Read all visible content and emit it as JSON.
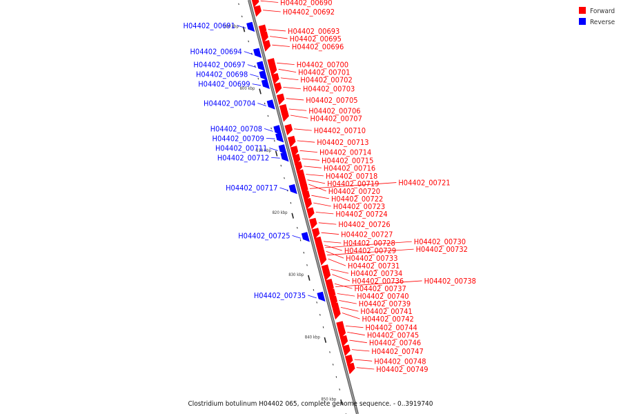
{
  "colors": {
    "forward": "#ff0000",
    "reverse": "#0000ff",
    "backbone": "#9e9e9e",
    "backbone_edge": "#555555",
    "tick": "#222222"
  },
  "legend": {
    "forward": "Forward",
    "reverse": "Reverse"
  },
  "caption": "Clostridium botulinum H04402 065, complete genome sequence. - 0..3919740",
  "backbone": {
    "start_kbp": 785.8,
    "end_kbp": 852.4
  },
  "tick_labels": [
    {
      "kbp": 790,
      "text": "790 kbp"
    },
    {
      "kbp": 800,
      "text": "800 kbp"
    },
    {
      "kbp": 810,
      "text": "810 kbp"
    },
    {
      "kbp": 820,
      "text": "820 kbp"
    },
    {
      "kbp": 830,
      "text": "830 kbp"
    },
    {
      "kbp": 840,
      "text": "840 kbp"
    },
    {
      "kbp": 850,
      "text": "850 kbp"
    }
  ],
  "genes": [
    {
      "name": "H04402_00690",
      "strand": "forward",
      "kbp": 786.3
    },
    {
      "name": "H04402_00692",
      "strand": "forward",
      "kbp": 787.8
    },
    {
      "name": "H04402_00691",
      "strand": "reverse",
      "kbp": 790.0
    },
    {
      "name": "H04402_00693",
      "strand": "forward",
      "kbp": 790.9
    },
    {
      "name": "H04402_00695",
      "strand": "forward",
      "kbp": 792.0
    },
    {
      "name": "H04402_00696",
      "strand": "forward",
      "kbp": 793.4
    },
    {
      "name": "H04402_00694",
      "strand": "reverse",
      "kbp": 794.2
    },
    {
      "name": "H04402_00700",
      "strand": "forward",
      "kbp": 796.3
    },
    {
      "name": "H04402_00697",
      "strand": "reverse",
      "kbp": 796.3
    },
    {
      "name": "H04402_00701",
      "strand": "forward",
      "kbp": 797.3
    },
    {
      "name": "H04402_00698",
      "strand": "reverse",
      "kbp": 797.8
    },
    {
      "name": "H04402_00702",
      "strand": "forward",
      "kbp": 798.7
    },
    {
      "name": "H04402_00699",
      "strand": "reverse",
      "kbp": 799.2
    },
    {
      "name": "H04402_00703",
      "strand": "forward",
      "kbp": 800.2
    },
    {
      "name": "H04402_00705",
      "strand": "forward",
      "kbp": 802.0
    },
    {
      "name": "H04402_00704",
      "strand": "reverse",
      "kbp": 802.5
    },
    {
      "name": "H04402_00706",
      "strand": "forward",
      "kbp": 803.7
    },
    {
      "name": "H04402_00707",
      "strand": "forward",
      "kbp": 804.7
    },
    {
      "name": "H04402_00708",
      "strand": "reverse",
      "kbp": 806.6
    },
    {
      "name": "H04402_00710",
      "strand": "forward",
      "kbp": 806.9
    },
    {
      "name": "H04402_00709",
      "strand": "reverse",
      "kbp": 807.8
    },
    {
      "name": "H04402_00713",
      "strand": "forward",
      "kbp": 808.8
    },
    {
      "name": "H04402_00711",
      "strand": "reverse",
      "kbp": 809.7
    },
    {
      "name": "H04402_00714",
      "strand": "forward",
      "kbp": 810.4
    },
    {
      "name": "H04402_00712",
      "strand": "reverse",
      "kbp": 810.9
    },
    {
      "name": "H04402_00715",
      "strand": "forward",
      "kbp": 811.7
    },
    {
      "name": "H04402_00716",
      "strand": "forward",
      "kbp": 812.9
    },
    {
      "name": "H04402_00718",
      "strand": "forward",
      "kbp": 814.2
    },
    {
      "name": "H04402_00719",
      "strand": "forward",
      "kbp": 815.1
    },
    {
      "name": "H04402_00720",
      "strand": "forward",
      "kbp": 815.8
    },
    {
      "name": "H04402_00717",
      "strand": "reverse",
      "kbp": 816.1
    },
    {
      "name": "H04402_00721",
      "strand": "forward",
      "kbp": 816.5
    },
    {
      "name": "H04402_00722",
      "strand": "forward",
      "kbp": 817.6
    },
    {
      "name": "H04402_00723",
      "strand": "forward",
      "kbp": 818.8
    },
    {
      "name": "H04402_00724",
      "strand": "forward",
      "kbp": 820.3
    },
    {
      "name": "H04402_00726",
      "strand": "forward",
      "kbp": 822.0
    },
    {
      "name": "H04402_00725",
      "strand": "reverse",
      "kbp": 823.8
    },
    {
      "name": "H04402_00727",
      "strand": "forward",
      "kbp": 823.6
    },
    {
      "name": "H04402_00728",
      "strand": "forward",
      "kbp": 825.0
    },
    {
      "name": "H04402_00729",
      "strand": "forward",
      "kbp": 825.6
    },
    {
      "name": "H04402_00730",
      "strand": "forward",
      "kbp": 826.0
    },
    {
      "name": "H04402_00733",
      "strand": "forward",
      "kbp": 826.6
    },
    {
      "name": "H04402_00732",
      "strand": "forward",
      "kbp": 827.2
    },
    {
      "name": "H04402_00731",
      "strand": "forward",
      "kbp": 827.8
    },
    {
      "name": "H04402_00734",
      "strand": "forward",
      "kbp": 829.5
    },
    {
      "name": "H04402_00736",
      "strand": "forward",
      "kbp": 830.3
    },
    {
      "name": "H04402_00737",
      "strand": "forward",
      "kbp": 831.8
    },
    {
      "name": "H04402_00738",
      "strand": "forward",
      "kbp": 832.3
    },
    {
      "name": "H04402_00735",
      "strand": "reverse",
      "kbp": 833.4
    },
    {
      "name": "H04402_00740",
      "strand": "forward",
      "kbp": 833.4
    },
    {
      "name": "H04402_00739",
      "strand": "forward",
      "kbp": 834.5
    },
    {
      "name": "H04402_00741",
      "strand": "forward",
      "kbp": 835.6
    },
    {
      "name": "H04402_00742",
      "strand": "forward",
      "kbp": 836.5
    },
    {
      "name": "H04402_00744",
      "strand": "forward",
      "kbp": 838.6
    },
    {
      "name": "H04402_00745",
      "strand": "forward",
      "kbp": 839.6
    },
    {
      "name": "H04402_00746",
      "strand": "forward",
      "kbp": 840.9
    },
    {
      "name": "H04402_00747",
      "strand": "forward",
      "kbp": 842.4
    },
    {
      "name": "H04402_00748",
      "strand": "forward",
      "kbp": 844.0
    },
    {
      "name": "H04402_00749",
      "strand": "forward",
      "kbp": 845.3
    }
  ]
}
